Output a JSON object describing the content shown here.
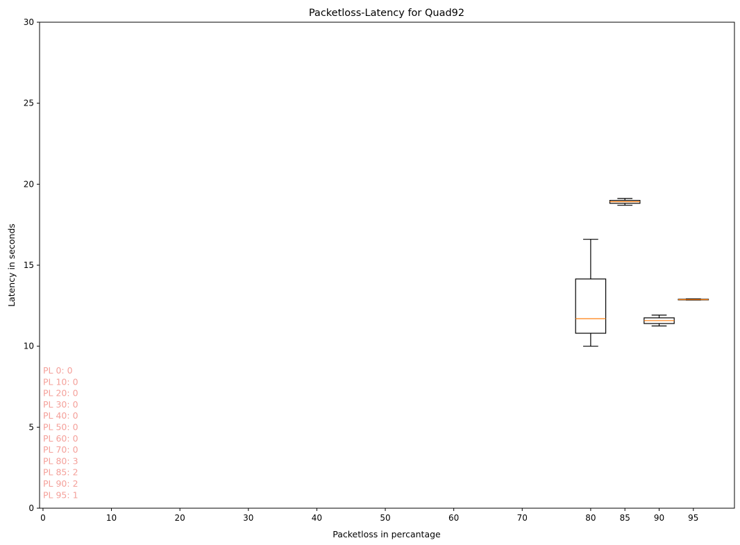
{
  "chart_data": {
    "type": "box",
    "title": "Packetloss-Latency for Quad92",
    "xlabel": "Packetloss in percantage",
    "ylabel": "Latency in seconds",
    "xlim": [
      -0.5,
      101
    ],
    "ylim": [
      0,
      30
    ],
    "xticks": [
      0,
      10,
      20,
      30,
      40,
      50,
      60,
      70,
      80,
      85,
      90,
      95
    ],
    "yticks": [
      0,
      5,
      10,
      15,
      20,
      25,
      30
    ],
    "grid": false,
    "boxes": [
      {
        "x": 80,
        "whisker_low": 10.0,
        "q1": 10.8,
        "median": 11.7,
        "q3": 14.15,
        "whisker_high": 16.6,
        "halfwidth": 2.2
      },
      {
        "x": 85,
        "whisker_low": 18.7,
        "q1": 18.82,
        "median": 18.92,
        "q3": 19.0,
        "whisker_high": 19.12,
        "halfwidth": 2.2
      },
      {
        "x": 90,
        "whisker_low": 11.25,
        "q1": 11.4,
        "median": 11.58,
        "q3": 11.75,
        "whisker_high": 11.92,
        "halfwidth": 2.2
      },
      {
        "x": 95,
        "whisker_low": 12.85,
        "q1": 12.86,
        "median": 12.88,
        "q3": 12.9,
        "whisker_high": 12.92,
        "halfwidth": 2.2
      }
    ],
    "annotations": [
      "PL 0: 0",
      "PL 10: 0",
      "PL 20: 0",
      "PL 30: 0",
      "PL 40: 0",
      "PL 50: 0",
      "PL 60: 0",
      "PL 70: 0",
      "PL 80: 3",
      "PL 85: 2",
      "PL 90: 2",
      "PL 95: 1"
    ],
    "colors": {
      "box": "#000000",
      "median": "#ff7f0e",
      "annotation": "#f4a09a"
    }
  }
}
